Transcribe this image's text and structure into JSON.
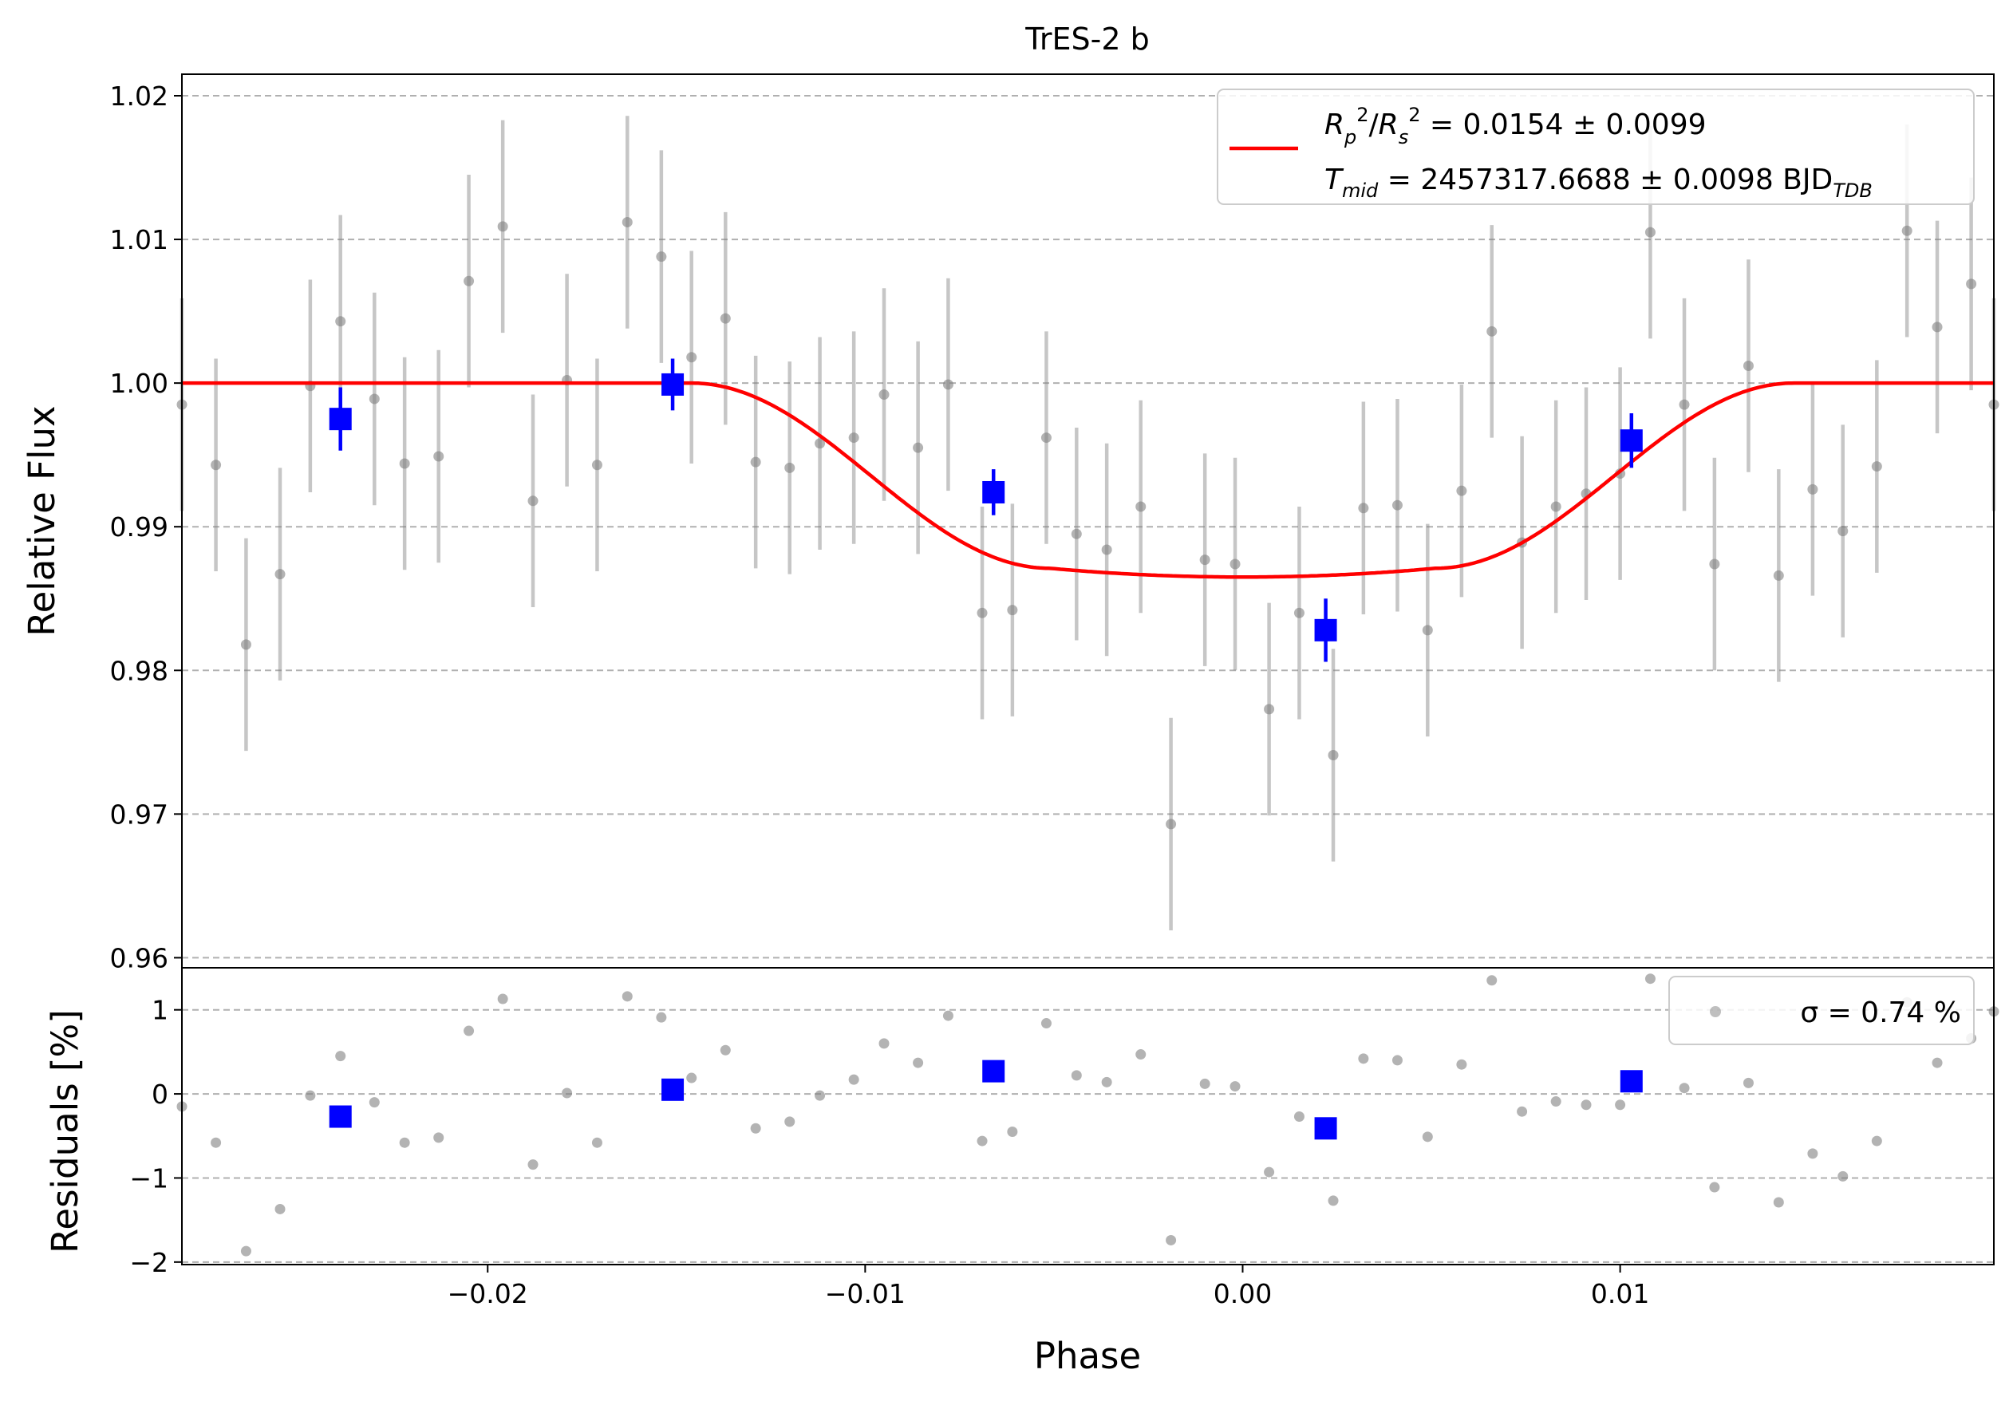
{
  "chart_data": {
    "type": "scatter",
    "title": "TrES-2 b",
    "xlabel": "Phase",
    "x_ticks": [
      -0.02,
      -0.01,
      0.0,
      0.01
    ],
    "x_tick_labels": [
      "−0.02",
      "−0.01",
      "0.00",
      "0.01"
    ],
    "xlim": [
      -0.0281,
      0.0199
    ],
    "top_panel": {
      "ylabel": "Relative Flux",
      "ylim": [
        0.9593,
        1.0215
      ],
      "y_ticks": [
        0.96,
        0.97,
        0.98,
        0.99,
        1.0,
        1.01,
        1.02
      ],
      "y_tick_labels": [
        "0.96",
        "0.97",
        "0.98",
        "0.99",
        "1.00",
        "1.01",
        "1.02"
      ],
      "grid": "horizontal dashed",
      "legend": {
        "position": "top-right",
        "line1": "R_p^2/R_s^2 = 0.0154 ± 0.0099",
        "line2": "T_mid = 2457317.6688 ± 0.0098 BJD_TDB"
      },
      "series": [
        {
          "kind": "data",
          "x": [
            -0.0281,
            -0.0272,
            -0.0264,
            -0.0255,
            -0.0247,
            -0.0239,
            -0.023,
            -0.0222,
            -0.0213,
            -0.0205,
            -0.0196,
            -0.0188,
            -0.0179,
            -0.0171,
            -0.0163,
            -0.0154,
            -0.0146,
            -0.0137,
            -0.0129,
            -0.012,
            -0.0112,
            -0.0103,
            -0.0095,
            -0.0086,
            -0.0078,
            -0.0069,
            -0.0061,
            -0.0052,
            -0.0044,
            -0.0036,
            -0.0027,
            -0.0019,
            -0.001,
            -0.0002,
            0.0007,
            0.0015,
            0.0024,
            0.0032,
            0.0041,
            0.0049,
            0.0058,
            0.0066,
            0.0074,
            0.0083,
            0.0091,
            0.01,
            0.0108,
            0.0117,
            0.0125,
            0.0134,
            0.0142,
            0.0151,
            0.0159,
            0.0168,
            0.0176,
            0.0184,
            0.0193,
            0.0199
          ],
          "y": [
            0.9985,
            0.9943,
            0.9818,
            0.9867,
            0.9998,
            1.0043,
            0.9989,
            0.9944,
            0.9949,
            1.0071,
            1.0109,
            0.9918,
            1.0002,
            0.9943,
            1.0112,
            1.0088,
            1.0018,
            1.0045,
            0.9945,
            0.9941,
            0.9958,
            0.9962,
            0.9992,
            0.9955,
            0.9999,
            0.984,
            0.9842,
            0.9962,
            0.9895,
            0.9884,
            0.9914,
            0.9693,
            0.9877,
            0.9874,
            0.9773,
            0.984,
            0.9741,
            0.9913,
            0.9915,
            0.9828,
            0.9925,
            1.0036,
            0.9889,
            0.9914,
            0.9923,
            0.9937,
            1.0105,
            0.9985,
            0.9874,
            1.0012,
            0.9866,
            0.9926,
            0.9897,
            0.9942,
            1.0106,
            1.0039,
            1.0069,
            0.9985
          ],
          "yerr": 0.0074,
          "color": "#808080"
        },
        {
          "kind": "binned",
          "x": [
            -0.0239,
            -0.0151,
            -0.0066,
            0.0022,
            0.0103
          ],
          "y": [
            0.9975,
            0.9999,
            0.9924,
            0.9828,
            0.996
          ],
          "yerr": [
            0.0022,
            0.0018,
            0.0016,
            0.0022,
            0.0019
          ],
          "color": "#0000ff"
        },
        {
          "kind": "model",
          "name": "R_p^2/R_s^2 = 0.0154 ± 0.0099",
          "color": "#ff0000",
          "depth": 0.0135,
          "t14": 0.0292
        }
      ]
    },
    "bottom_panel": {
      "ylabel": "Residuals [%]",
      "ylim": [
        -2.03,
        1.5
      ],
      "y_ticks": [
        -2,
        -1,
        0,
        1
      ],
      "y_tick_labels": [
        "−2",
        "−1",
        "0",
        "1"
      ],
      "grid": "horizontal dashed",
      "legend": {
        "position": "top-right",
        "text": "σ = 0.74 %"
      },
      "series": [
        {
          "kind": "data-residuals",
          "x": [
            -0.0281,
            -0.0272,
            -0.0264,
            -0.0255,
            -0.0247,
            -0.0239,
            -0.023,
            -0.0222,
            -0.0213,
            -0.0205,
            -0.0196,
            -0.0188,
            -0.0179,
            -0.0171,
            -0.0163,
            -0.0154,
            -0.0146,
            -0.0137,
            -0.0129,
            -0.012,
            -0.0112,
            -0.0103,
            -0.0095,
            -0.0086,
            -0.0078,
            -0.0069,
            -0.0061,
            -0.0052,
            -0.0044,
            -0.0036,
            -0.0027,
            -0.0019,
            -0.001,
            -0.0002,
            0.0007,
            0.0015,
            0.0024,
            0.0032,
            0.0041,
            0.0049,
            0.0058,
            0.0066,
            0.0074,
            0.0083,
            0.0091,
            0.01,
            0.0108,
            0.0117,
            0.0125,
            0.0134,
            0.0142,
            0.0151,
            0.0159,
            0.0168,
            0.0176,
            0.0184,
            0.0193,
            0.0199
          ],
          "y": [
            -0.15,
            -0.58,
            -1.87,
            -1.37,
            -0.02,
            0.45,
            -0.1,
            -0.58,
            -0.52,
            0.75,
            1.13,
            -0.84,
            0.01,
            -0.58,
            1.16,
            0.91,
            0.19,
            0.52,
            -0.41,
            -0.33,
            -0.02,
            0.17,
            0.6,
            0.37,
            0.93,
            -0.56,
            -0.45,
            0.84,
            0.22,
            0.14,
            0.47,
            -1.74,
            0.12,
            0.09,
            -0.93,
            -0.27,
            -1.27,
            0.42,
            0.4,
            -0.51,
            0.35,
            1.35,
            -0.21,
            -0.09,
            -0.13,
            -0.13,
            1.37,
            0.07,
            -1.11,
            0.13,
            -1.29,
            -0.71,
            -0.98,
            -0.56,
            1.09,
            0.37,
            0.66,
            0.98
          ],
          "color": "#808080"
        },
        {
          "kind": "binned-residuals",
          "x": [
            -0.0239,
            -0.0151,
            -0.0066,
            0.0022,
            0.0103
          ],
          "y": [
            -0.27,
            0.05,
            0.27,
            -0.41,
            0.15
          ],
          "color": "#0000ff"
        }
      ]
    }
  }
}
